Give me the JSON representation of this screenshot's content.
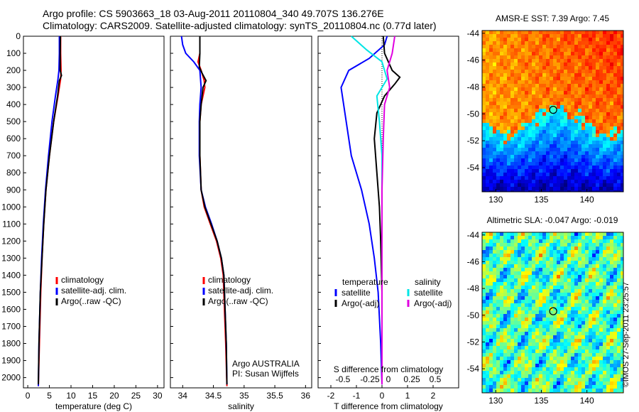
{
  "header": {
    "line1": "Argo profile: CS 5903663_18 03-Aug-2011 20110804_340 49.707S 136.276E",
    "line2": "Climatology: CARS2009. Satellite-adjusted climatology: synTS_20110804.nc (0.77d later)"
  },
  "credit": "©IMOS 27-Sep-2011 23:25:57",
  "colors": {
    "climatology": "#ff0000",
    "satellite": "#0000ff",
    "argo": "#000000",
    "sat_s": "#00e5e5",
    "argo_s": "#e000e0"
  },
  "chart_data": [
    {
      "type": "line",
      "id": "temperature",
      "xlabel": "temperature (deg C)",
      "xlim": [
        -1,
        31.5
      ],
      "xticks": [
        0,
        5,
        10,
        15,
        20,
        25,
        30
      ],
      "ylim": [
        0,
        2060
      ],
      "yticks": [
        0,
        100,
        200,
        300,
        400,
        500,
        600,
        700,
        800,
        900,
        1000,
        1100,
        1200,
        1300,
        1400,
        1500,
        1600,
        1700,
        1800,
        1900,
        2000
      ],
      "legend": [
        "climatology",
        "satellite-adj. clim.",
        "Argo(..raw -QC)"
      ],
      "legend_position": "center",
      "series": [
        {
          "name": "climatology",
          "color": "#ff0000",
          "points": [
            [
              7.6,
              0
            ],
            [
              7.6,
              100
            ],
            [
              7.7,
              200
            ],
            [
              7.6,
              250
            ],
            [
              7.0,
              350
            ],
            [
              6.0,
              500
            ],
            [
              5.0,
              700
            ],
            [
              4.2,
              900
            ],
            [
              3.7,
              1100
            ],
            [
              3.3,
              1300
            ],
            [
              3.0,
              1500
            ],
            [
              2.7,
              1800
            ],
            [
              2.45,
              2050
            ]
          ]
        },
        {
          "name": "satellite-adj. clim.",
          "color": "#0000ff",
          "points": [
            [
              7.3,
              0
            ],
            [
              7.3,
              100
            ],
            [
              7.2,
              200
            ],
            [
              7.0,
              250
            ],
            [
              6.4,
              350
            ],
            [
              5.6,
              500
            ],
            [
              4.8,
              700
            ],
            [
              4.1,
              900
            ],
            [
              3.6,
              1100
            ],
            [
              3.2,
              1300
            ],
            [
              2.9,
              1500
            ],
            [
              2.6,
              1800
            ],
            [
              2.45,
              2050
            ]
          ]
        },
        {
          "name": "Argo(..raw -QC)",
          "color": "#000000",
          "points": [
            [
              7.55,
              0
            ],
            [
              7.5,
              100
            ],
            [
              7.5,
              200
            ],
            [
              7.8,
              230
            ],
            [
              7.3,
              260
            ],
            [
              6.9,
              350
            ],
            [
              6.0,
              500
            ],
            [
              5.0,
              700
            ],
            [
              4.2,
              900
            ],
            [
              3.7,
              1100
            ],
            [
              3.3,
              1300
            ],
            [
              2.9,
              1500
            ],
            [
              2.6,
              1800
            ],
            [
              2.45,
              2040
            ]
          ]
        }
      ]
    },
    {
      "type": "line",
      "id": "salinity",
      "xlabel": "salinity",
      "xlim": [
        33.8,
        36.1
      ],
      "xticks": [
        34,
        34.5,
        35,
        35.5,
        36
      ],
      "ylim": [
        0,
        2060
      ],
      "legend": [
        "climatology",
        "satellite-adj. clim.",
        "Argo(..raw -QC)"
      ],
      "legend_position": "center",
      "annotation": [
        "Argo AUSTRALIA",
        "PI: Susan Wijffels"
      ],
      "series": [
        {
          "name": "climatology",
          "color": "#ff0000",
          "points": [
            [
              34.28,
              0
            ],
            [
              34.28,
              100
            ],
            [
              34.25,
              150
            ],
            [
              34.3,
              200
            ],
            [
              34.35,
              260
            ],
            [
              34.36,
              300
            ],
            [
              34.3,
              400
            ],
            [
              34.28,
              500
            ],
            [
              34.28,
              700
            ],
            [
              34.3,
              900
            ],
            [
              34.35,
              1000
            ],
            [
              34.45,
              1100
            ],
            [
              34.55,
              1200
            ],
            [
              34.62,
              1300
            ],
            [
              34.66,
              1400
            ],
            [
              34.68,
              1600
            ],
            [
              34.7,
              1800
            ],
            [
              34.72,
              2050
            ]
          ]
        },
        {
          "name": "satellite-adj. clim.",
          "color": "#0000ff",
          "points": [
            [
              33.98,
              0
            ],
            [
              34.0,
              50
            ],
            [
              34.05,
              100
            ],
            [
              34.18,
              150
            ],
            [
              34.28,
              200
            ],
            [
              34.3,
              300
            ],
            [
              34.28,
              400
            ],
            [
              34.27,
              500
            ],
            [
              34.27,
              700
            ],
            [
              34.3,
              900
            ],
            [
              34.37,
              1000
            ],
            [
              34.47,
              1100
            ],
            [
              34.56,
              1200
            ],
            [
              34.63,
              1300
            ],
            [
              34.67,
              1400
            ],
            [
              34.69,
              1600
            ],
            [
              34.71,
              1800
            ],
            [
              34.72,
              2040
            ]
          ]
        },
        {
          "name": "Argo(..raw -QC)",
          "color": "#000000",
          "points": [
            [
              34.28,
              0
            ],
            [
              34.28,
              100
            ],
            [
              34.27,
              180
            ],
            [
              34.32,
              220
            ],
            [
              34.38,
              260
            ],
            [
              34.33,
              300
            ],
            [
              34.3,
              400
            ],
            [
              34.28,
              500
            ],
            [
              34.28,
              700
            ],
            [
              34.3,
              900
            ],
            [
              34.36,
              1000
            ],
            [
              34.46,
              1100
            ],
            [
              34.56,
              1200
            ],
            [
              34.63,
              1300
            ],
            [
              34.67,
              1400
            ],
            [
              34.69,
              1600
            ],
            [
              34.71,
              1800
            ],
            [
              34.72,
              2040
            ]
          ]
        }
      ]
    },
    {
      "type": "line",
      "id": "difference",
      "xlabel": "T difference from climatology",
      "xlim": [
        -2.5,
        3
      ],
      "xticks": [
        -2,
        -1,
        0,
        1,
        2
      ],
      "top_label": "S difference from climatology",
      "top_ticks": [
        "-0.5",
        "-0.25",
        "0",
        "0.25",
        "0.5"
      ],
      "ylim": [
        0,
        2060
      ],
      "legend_titles": [
        "temperature",
        "salinity"
      ],
      "legend": [
        "satellite",
        "Argo(-adj)",
        "satellite",
        "Argo(-adj)"
      ],
      "legend_position": "center",
      "series": [
        {
          "name": "satellite",
          "group": "temperature",
          "color": "#0000ff",
          "points": [
            [
              0.2,
              0
            ],
            [
              0.1,
              50
            ],
            [
              -0.5,
              130
            ],
            [
              -1.3,
              200
            ],
            [
              -1.6,
              300
            ],
            [
              -1.5,
              400
            ],
            [
              -1.4,
              500
            ],
            [
              -1.2,
              700
            ],
            [
              -0.8,
              900
            ],
            [
              -0.5,
              1100
            ],
            [
              -0.3,
              1300
            ],
            [
              -0.15,
              1500
            ],
            [
              -0.05,
              1800
            ],
            [
              0,
              2040
            ]
          ]
        },
        {
          "name": "Argo(-adj)",
          "group": "temperature",
          "color": "#000000",
          "points": [
            [
              0.05,
              0
            ],
            [
              0.1,
              100
            ],
            [
              0.4,
              200
            ],
            [
              0.7,
              240
            ],
            [
              0.5,
              280
            ],
            [
              0.1,
              350
            ],
            [
              -0.2,
              450
            ],
            [
              -0.3,
              600
            ],
            [
              -0.2,
              800
            ],
            [
              -0.1,
              1000
            ],
            [
              -0.05,
              1200
            ],
            [
              0,
              1500
            ],
            [
              0,
              2040
            ]
          ]
        },
        {
          "name": "satellite",
          "group": "salinity",
          "color": "#00e5e5",
          "points": [
            [
              -1.2,
              0
            ],
            [
              -0.6,
              80
            ],
            [
              0,
              150
            ],
            [
              0.2,
              250
            ],
            [
              -0.2,
              350
            ],
            [
              -0.1,
              500
            ],
            [
              0,
              700
            ],
            [
              0,
              1000
            ],
            [
              0,
              1500
            ],
            [
              0,
              2040
            ]
          ]
        },
        {
          "name": "Argo(-adj)",
          "group": "salinity",
          "color": "#e000e0",
          "points": [
            [
              0.5,
              0
            ],
            [
              0.4,
              100
            ],
            [
              0.2,
              200
            ],
            [
              0.3,
              300
            ],
            [
              0.1,
              400
            ],
            [
              0.05,
              600
            ],
            [
              0,
              900
            ],
            [
              0,
              1500
            ],
            [
              0,
              2040
            ]
          ]
        }
      ]
    },
    {
      "type": "heatmap",
      "id": "sst-map",
      "title": "AMSR-E SST: 7.39 Argo: 7.45",
      "xticks": [
        130,
        135,
        140
      ],
      "yticks": [
        -44,
        -46,
        -48,
        -50,
        -52,
        -54
      ],
      "xlim": [
        128.5,
        144
      ],
      "ylim": [
        -55.8,
        -43.8
      ],
      "marker": [
        136.3,
        -49.7
      ]
    },
    {
      "type": "heatmap",
      "id": "sla-map",
      "title": "Altimetric SLA: -0.047 Argo: -0.019",
      "xticks": [
        130,
        135,
        140
      ],
      "yticks": [
        -44,
        -46,
        -48,
        -50,
        -52,
        -54
      ],
      "xlim": [
        128.5,
        144
      ],
      "ylim": [
        -55.8,
        -43.8
      ],
      "marker": [
        136.3,
        -49.7
      ]
    }
  ]
}
